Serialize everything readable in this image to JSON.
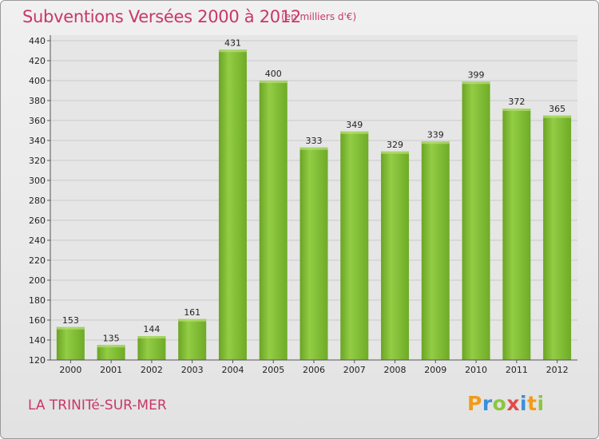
{
  "chart_data": {
    "type": "bar",
    "title": "Subventions Versées 2000 à 2012",
    "subtitle": "(en milliers d'€)",
    "categories": [
      "2000",
      "2001",
      "2002",
      "2003",
      "2004",
      "2005",
      "2006",
      "2007",
      "2008",
      "2009",
      "2010",
      "2011",
      "2012"
    ],
    "values": [
      153,
      135,
      144,
      161,
      431,
      400,
      333,
      349,
      329,
      339,
      399,
      372,
      365
    ],
    "yticks": [
      120,
      140,
      160,
      180,
      200,
      220,
      240,
      260,
      280,
      300,
      320,
      340,
      360,
      380,
      400,
      420,
      440
    ],
    "ylim": [
      120,
      440
    ],
    "grid": true,
    "xlabel": "",
    "ylabel": "",
    "bar_color": "#7fbb2f"
  },
  "footer": {
    "place": "LA TRINITé-SUR-MER",
    "logo": [
      "P",
      "r",
      "o",
      "x",
      "i",
      "t",
      "i"
    ],
    "logo_colors": [
      "#f29a1b",
      "#3b8fd9",
      "#8cc63f",
      "#e24a4a",
      "#3b8fd9",
      "#f29a1b",
      "#8cc63f"
    ]
  }
}
